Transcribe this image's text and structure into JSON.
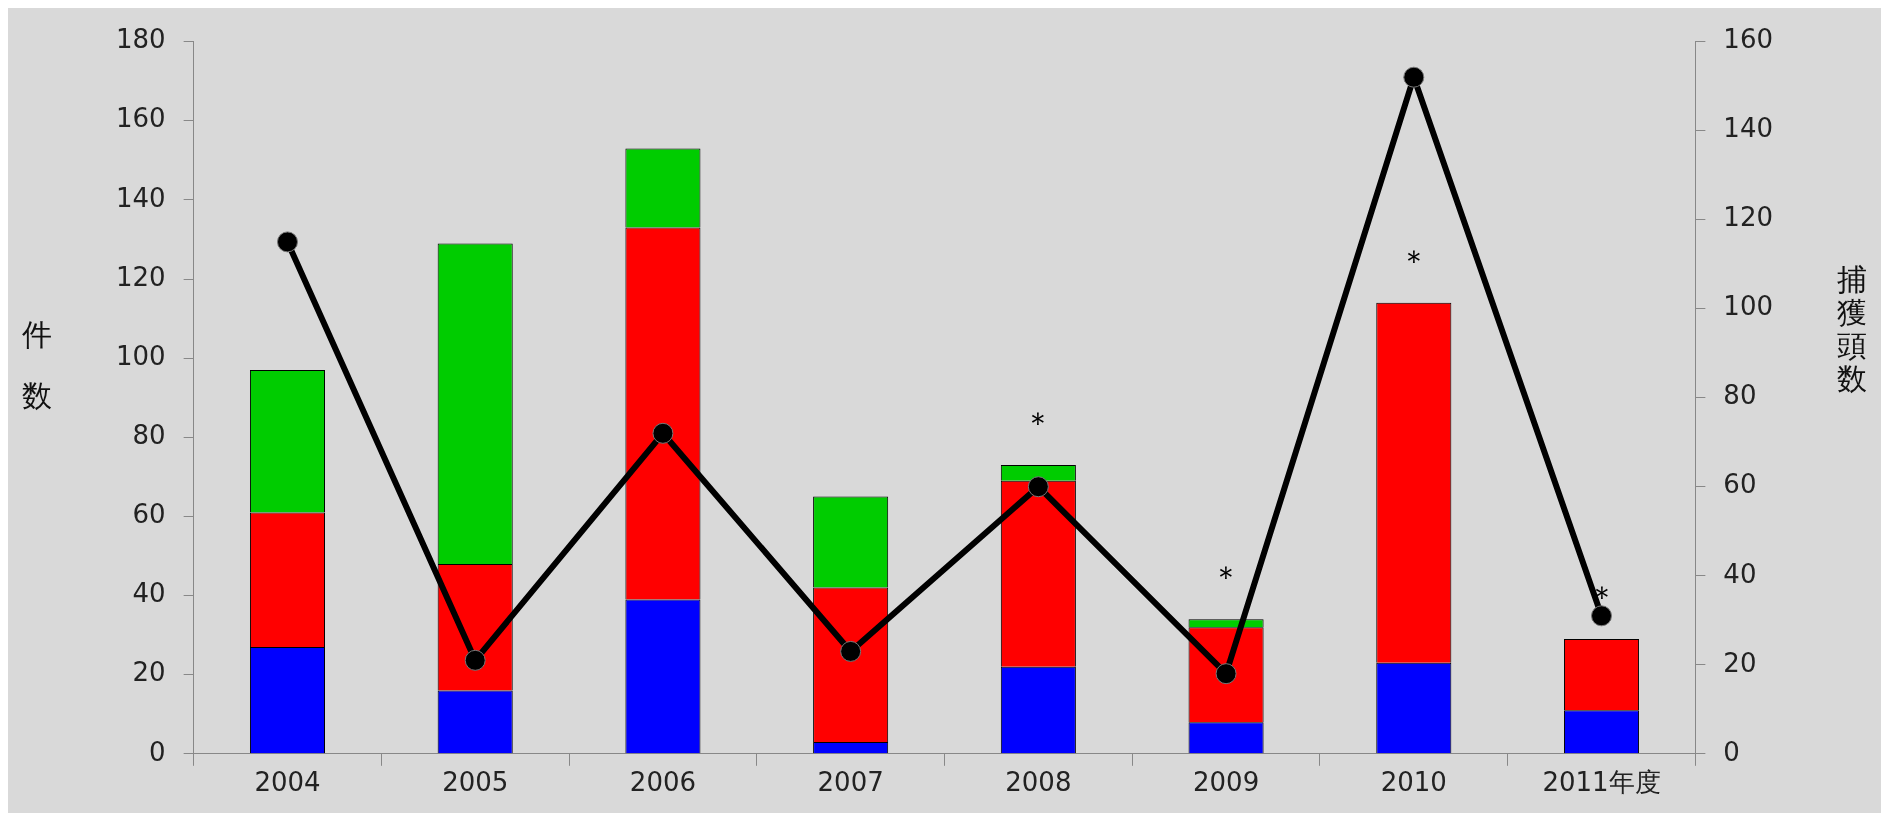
{
  "chart_data": {
    "type": "bar",
    "stacked": true,
    "categories": [
      "2004",
      "2005",
      "2006",
      "2007",
      "2008",
      "2009",
      "2010",
      "2011年度"
    ],
    "series": [
      {
        "color": "#0000ff",
        "values": [
          27,
          16,
          39,
          3,
          22,
          8,
          23,
          11
        ]
      },
      {
        "color": "#ff0000",
        "values": [
          34,
          32,
          94,
          39,
          47,
          24,
          91,
          18
        ]
      },
      {
        "color": "#00cc00",
        "values": [
          36,
          81,
          20,
          23,
          4,
          2,
          0,
          0
        ]
      },
      {
        "type": "line",
        "axis": "y2",
        "color": "#000000",
        "marker": "circle",
        "line_style": "solid",
        "values": [
          115,
          21,
          72,
          23,
          60,
          18,
          152,
          31
        ]
      }
    ],
    "ylabel": "件数",
    "y2label": "捕獲頭数",
    "ylim": [
      0,
      180
    ],
    "yticks": [
      0,
      20,
      40,
      60,
      80,
      100,
      120,
      140,
      160,
      180
    ],
    "y2lim": [
      0,
      160
    ],
    "y2ticks": [
      0,
      20,
      40,
      60,
      80,
      100,
      120,
      140,
      160
    ],
    "grid": false,
    "legend": false,
    "annotations": [
      {
        "text": "＊",
        "x": "2008",
        "y": 73
      },
      {
        "text": "＊",
        "x": "2009",
        "y": 34
      },
      {
        "text": "＊",
        "x": "2010",
        "y": 114
      },
      {
        "text": "＊",
        "x": "2011年度",
        "y": 29
      }
    ]
  }
}
